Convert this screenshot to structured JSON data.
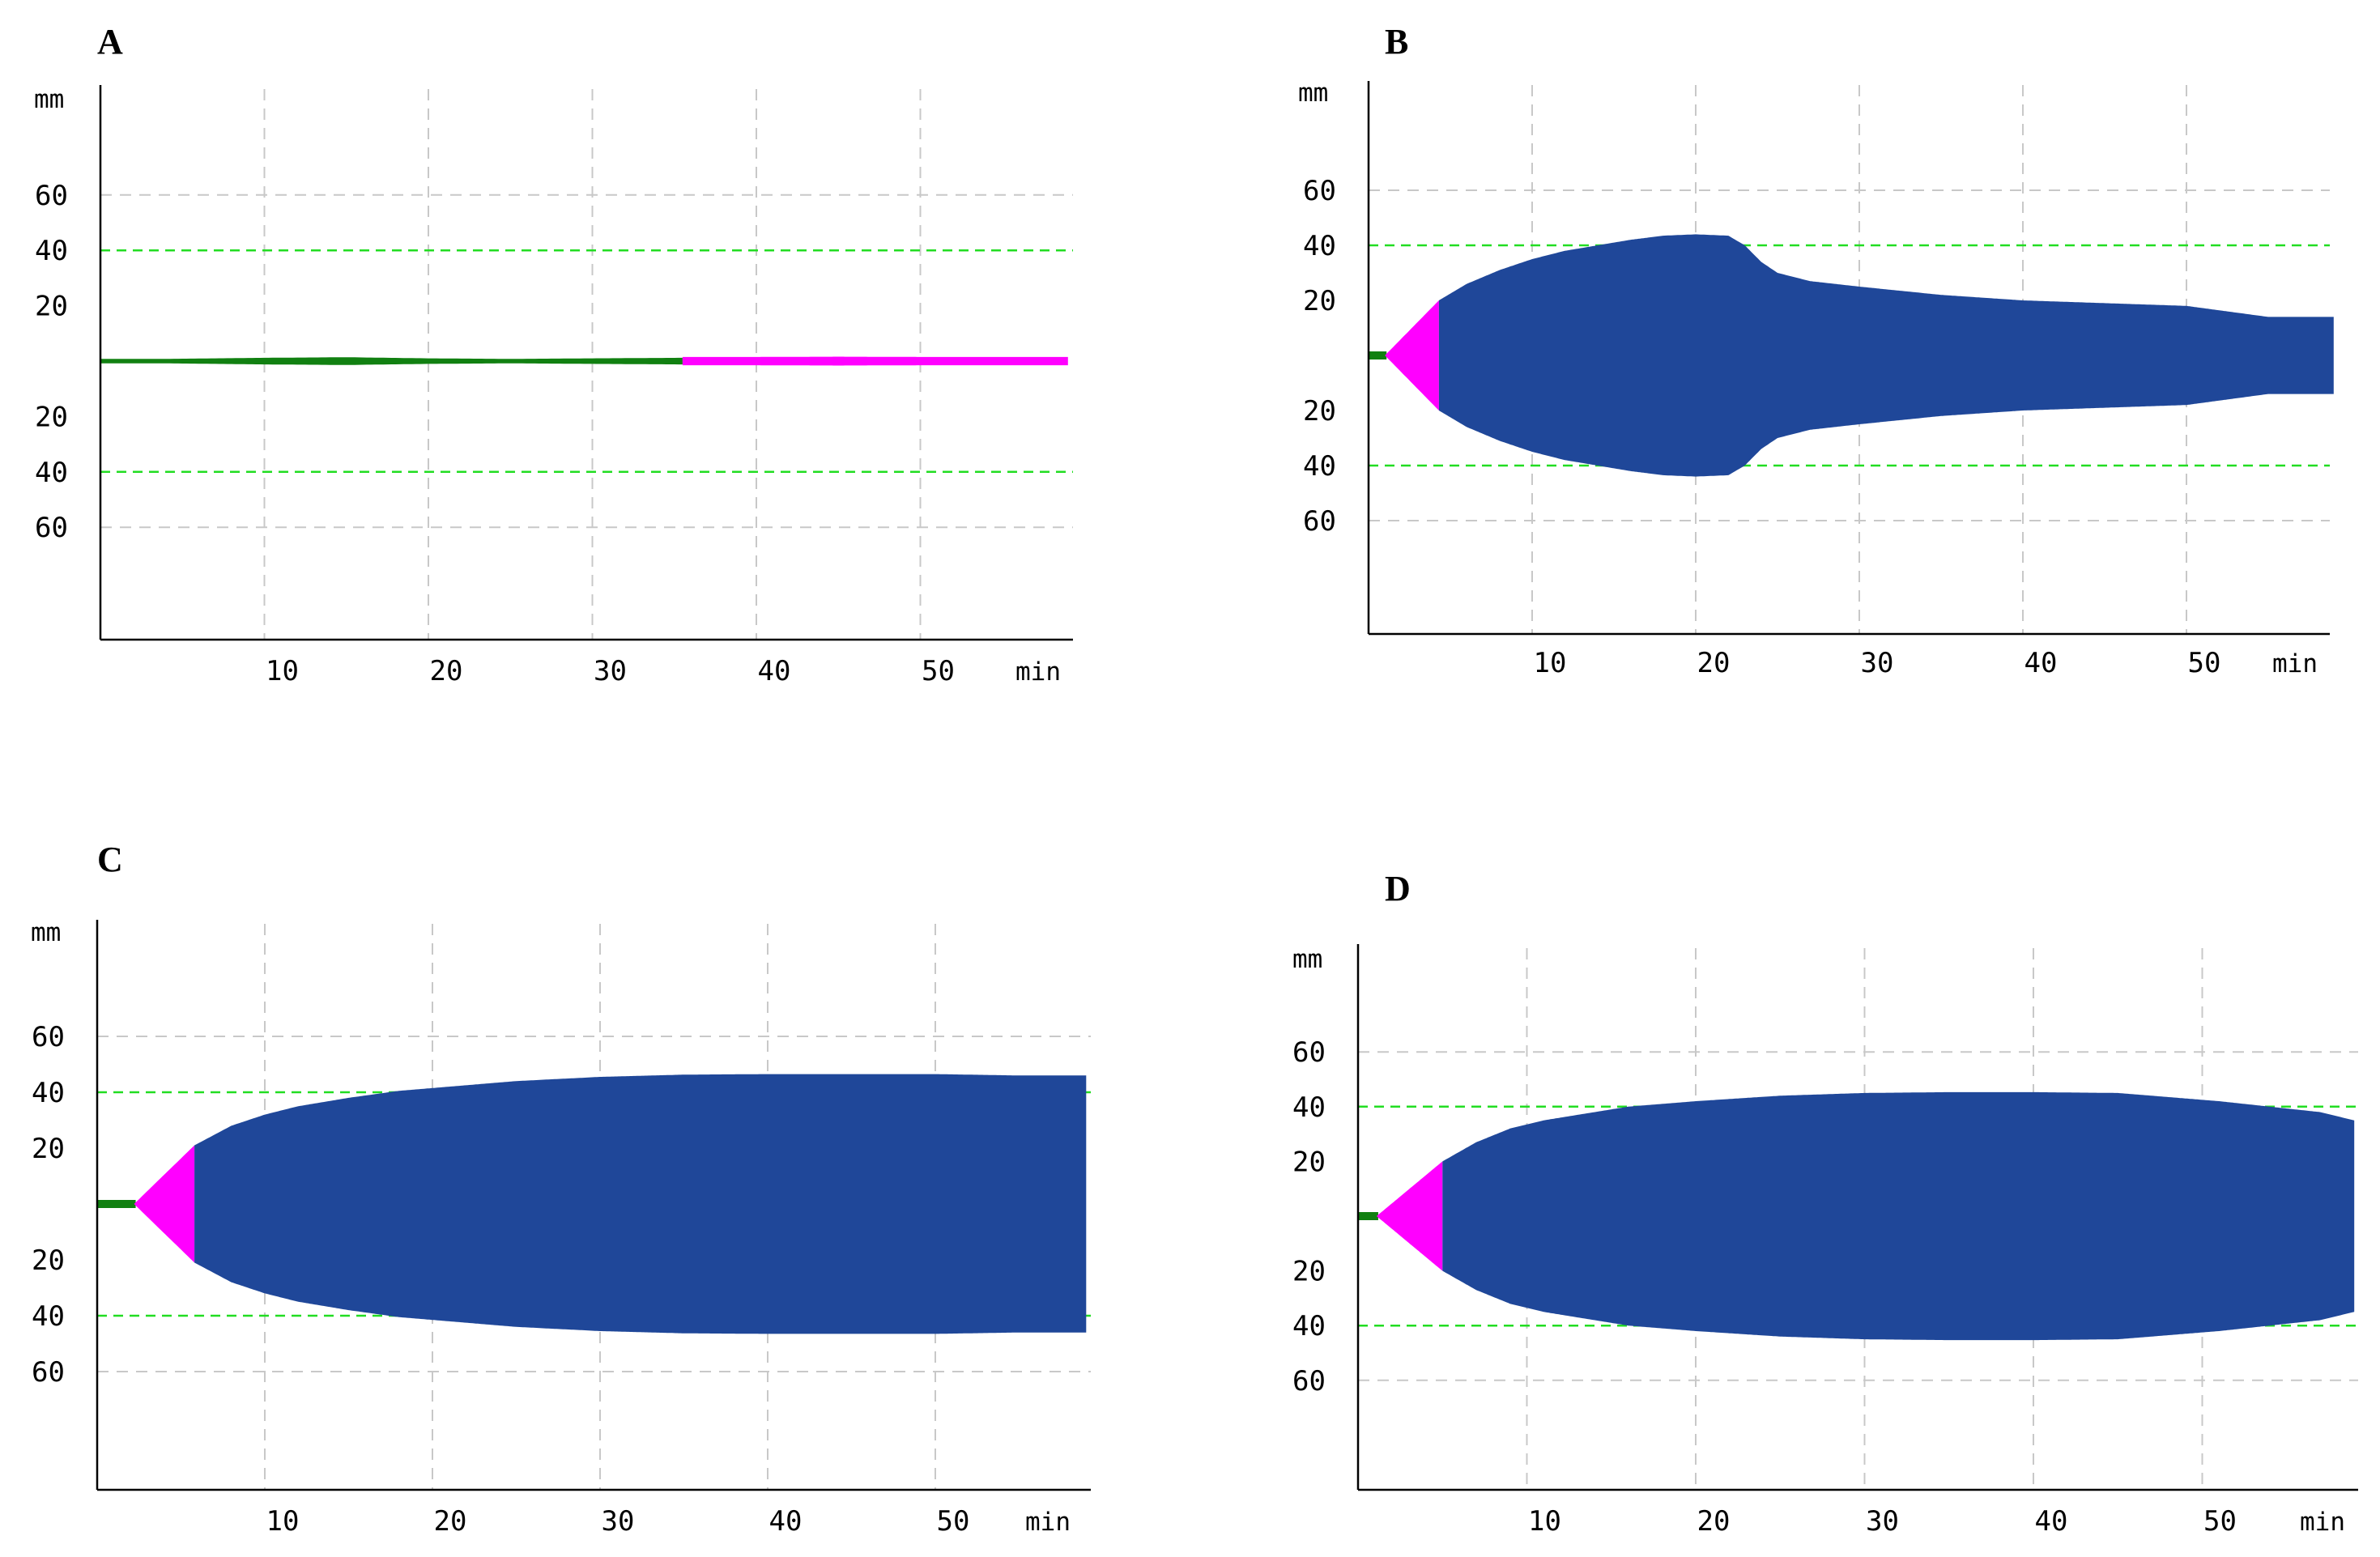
{
  "figure": {
    "description_colors": {
      "tracing_blue": "#1f4799",
      "initiation_magenta": "#ff00ff",
      "baseline_green": "#118011",
      "threshold_green": "#22dd22",
      "grid_gray": "#c8c8c8"
    }
  },
  "chart_data": [
    {
      "panel": "A",
      "type": "area",
      "title": "A",
      "ylabel": "mm",
      "xlabel": "min",
      "x_ticks": [
        10,
        20,
        30,
        40,
        50
      ],
      "y_ticks_upper": [
        60,
        40,
        20
      ],
      "y_ticks_lower": [
        20,
        40,
        60
      ],
      "xlim": [
        0,
        59
      ],
      "threshold_lines_mm": [
        40,
        -40
      ],
      "grid": true,
      "phases": [
        {
          "name": "baseline",
          "color": "#118011",
          "x_start": 0,
          "x_end": 35.5
        },
        {
          "name": "initiation",
          "color": "#ff00ff",
          "x_start": 35.5,
          "x_end": 59
        }
      ],
      "amplitude_profile": {
        "x": [
          0,
          4,
          10,
          15,
          20,
          25,
          30,
          35.5,
          40,
          45,
          50,
          59
        ],
        "y": [
          0,
          0.8,
          1.2,
          1.4,
          1,
          0.8,
          1,
          1.2,
          1.5,
          1.6,
          1.5,
          1.5
        ]
      }
    },
    {
      "panel": "B",
      "type": "area",
      "title": "B",
      "ylabel": "mm",
      "xlabel": "min",
      "x_ticks": [
        10,
        20,
        30,
        40,
        50
      ],
      "y_ticks_upper": [
        60,
        40,
        20
      ],
      "y_ticks_lower": [
        20,
        40,
        60
      ],
      "xlim": [
        0,
        59
      ],
      "threshold_lines_mm": [
        40,
        -40
      ],
      "grid": true,
      "phases": [
        {
          "name": "baseline",
          "color": "#118011",
          "x_start": 0,
          "x_end": 1
        },
        {
          "name": "initiation",
          "color": "#ff00ff",
          "x_start": 1,
          "x_end": 4.3
        },
        {
          "name": "clot",
          "color": "#1f4799",
          "x_start": 4.3,
          "x_end": 59
        }
      ],
      "amplitude_profile": {
        "x": [
          1,
          4.3,
          6,
          8,
          10,
          12,
          14,
          16,
          18,
          20,
          22,
          23,
          24,
          25,
          27,
          30,
          35,
          40,
          45,
          50,
          55,
          59
        ],
        "y": [
          0,
          20,
          26,
          31,
          35,
          38,
          40,
          42,
          43.5,
          44,
          43.5,
          40,
          34,
          30,
          27,
          25,
          22,
          20,
          19,
          18,
          14,
          14
        ]
      }
    },
    {
      "panel": "C",
      "type": "area",
      "title": "C",
      "ylabel": "mm",
      "xlabel": "min",
      "x_ticks": [
        10,
        20,
        30,
        40,
        50
      ],
      "y_ticks_upper": [
        60,
        40,
        20
      ],
      "y_ticks_lower": [
        20,
        40,
        60
      ],
      "xlim": [
        0,
        59
      ],
      "threshold_lines_mm": [
        40,
        -40
      ],
      "grid": true,
      "phases": [
        {
          "name": "baseline",
          "color": "#118011",
          "x_start": 0,
          "x_end": 2.2
        },
        {
          "name": "initiation",
          "color": "#ff00ff",
          "x_start": 2.2,
          "x_end": 5.8
        },
        {
          "name": "clot",
          "color": "#1f4799",
          "x_start": 5.8,
          "x_end": 59
        }
      ],
      "amplitude_profile": {
        "x": [
          2.2,
          5.8,
          8,
          10,
          12,
          15,
          18,
          21,
          25,
          30,
          35,
          40,
          45,
          50,
          55,
          59
        ],
        "y": [
          0,
          21,
          28,
          32,
          35,
          38,
          40.5,
          42,
          44,
          45.5,
          46.3,
          46.5,
          46.5,
          46.5,
          46,
          46
        ]
      }
    },
    {
      "panel": "D",
      "type": "area",
      "title": "D",
      "ylabel": "mm",
      "xlabel": "min",
      "x_ticks": [
        10,
        20,
        30,
        40,
        50
      ],
      "y_ticks_upper": [
        60,
        40,
        20
      ],
      "y_ticks_lower": [
        20,
        40,
        60
      ],
      "xlim": [
        0,
        59
      ],
      "threshold_lines_mm": [
        40,
        -40
      ],
      "grid": true,
      "phases": [
        {
          "name": "baseline",
          "color": "#118011",
          "x_start": 0,
          "x_end": 1.1
        },
        {
          "name": "initiation",
          "color": "#ff00ff",
          "x_start": 1.1,
          "x_end": 5
        },
        {
          "name": "clot",
          "color": "#1f4799",
          "x_start": 5,
          "x_end": 59
        }
      ],
      "amplitude_profile": {
        "x": [
          1.1,
          5,
          7,
          9,
          11,
          13,
          16,
          20,
          25,
          30,
          35,
          40,
          45,
          48,
          51,
          54,
          57,
          59
        ],
        "y": [
          0,
          20,
          27,
          32,
          35,
          37,
          40,
          42,
          44,
          45,
          45.3,
          45.3,
          45,
          43.5,
          42,
          40,
          38,
          35
        ]
      }
    }
  ]
}
